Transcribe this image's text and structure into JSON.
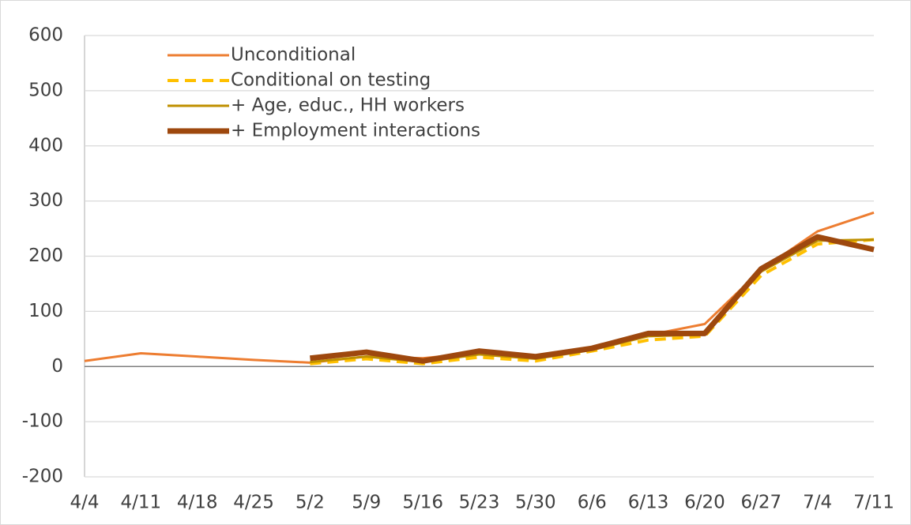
{
  "chart_data": {
    "type": "line",
    "categories": [
      "4/4",
      "4/11",
      "4/18",
      "4/25",
      "5/2",
      "5/9",
      "5/16",
      "5/23",
      "5/30",
      "6/6",
      "6/13",
      "6/20",
      "6/27",
      "7/4",
      "7/11"
    ],
    "series": [
      {
        "name": "Unconditional",
        "color": "#ed7d31",
        "line_style": "solid",
        "values": [
          10,
          24,
          18,
          12,
          7,
          18,
          15,
          25,
          15,
          32,
          57,
          77,
          175,
          245,
          279
        ]
      },
      {
        "name": "Conditional on testing",
        "color": "#ffc000",
        "line_style": "dashed",
        "values": [
          null,
          null,
          null,
          null,
          5,
          14,
          5,
          17,
          10,
          28,
          48,
          55,
          165,
          222,
          230
        ]
      },
      {
        "name": "+ Age, educ., HH workers",
        "color": "#bf9000",
        "line_style": "solid",
        "values": [
          null,
          null,
          null,
          null,
          8,
          18,
          8,
          22,
          14,
          30,
          55,
          58,
          172,
          228,
          230
        ]
      },
      {
        "name": "+ Employment interactions",
        "color": "#9e480e",
        "line_style": "solid",
        "values": [
          null,
          null,
          null,
          null,
          15,
          26,
          10,
          28,
          18,
          33,
          60,
          60,
          177,
          235,
          212
        ]
      }
    ],
    "ylim": [
      -200,
      600
    ],
    "yticks": [
      -200,
      -100,
      0,
      100,
      200,
      300,
      400,
      500,
      600
    ],
    "grid": true,
    "legend": "upper-left"
  }
}
